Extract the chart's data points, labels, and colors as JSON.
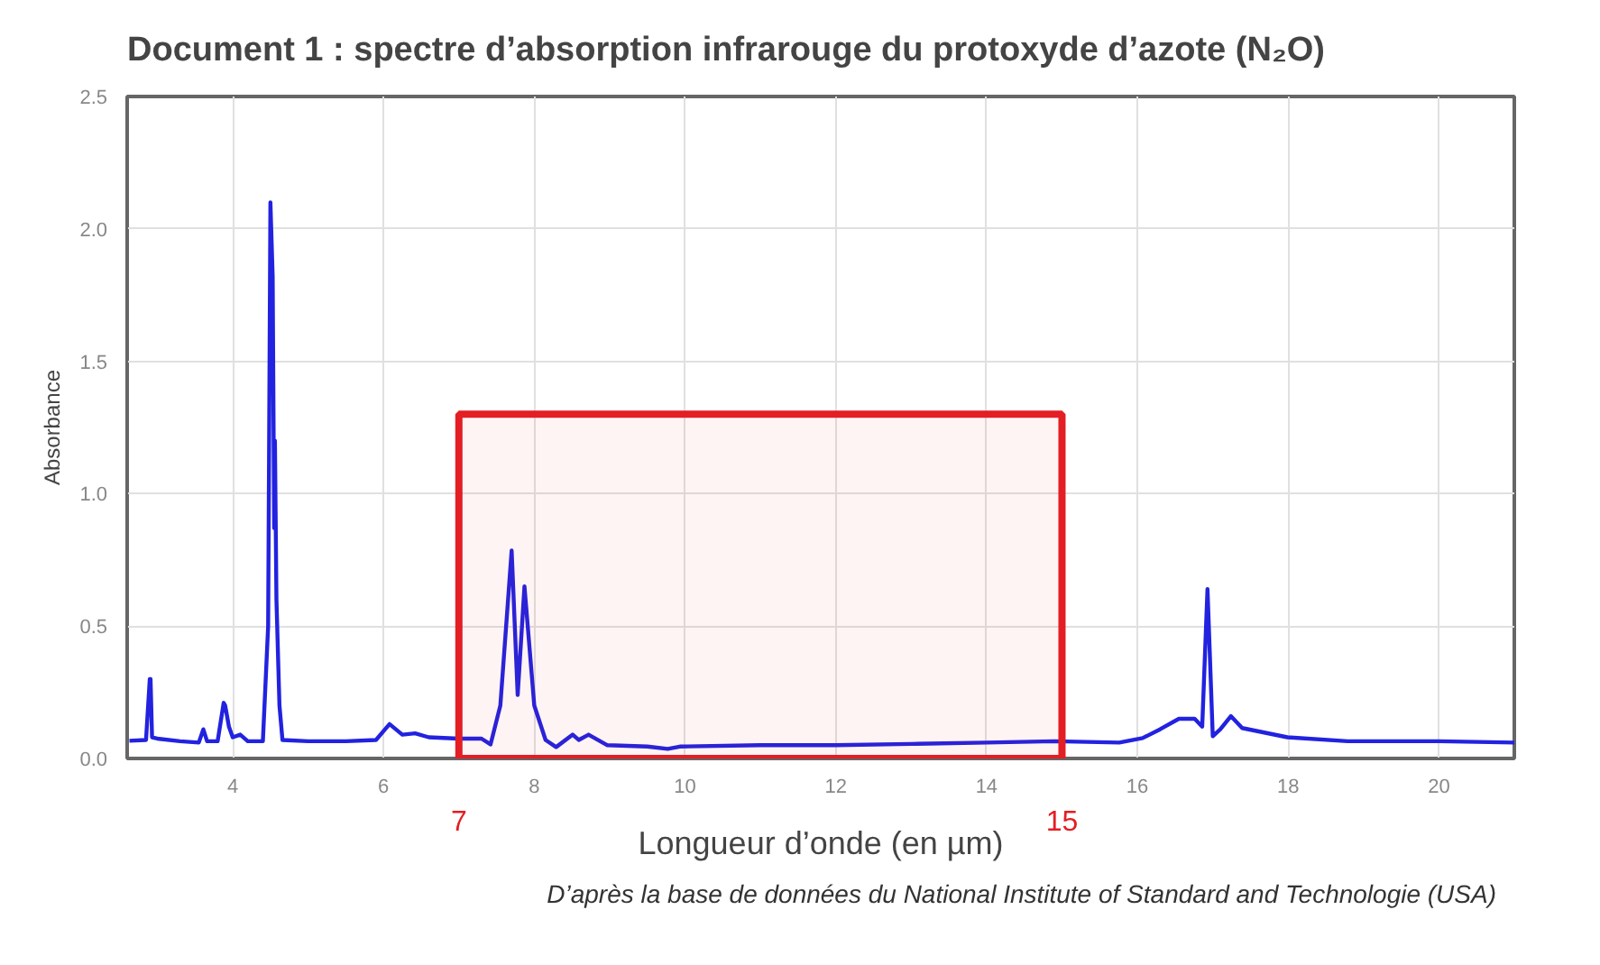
{
  "chart_data": {
    "type": "line",
    "title": "Document 1 : spectre d’absorption infrarouge du protoxyde d’azote (N₂O)",
    "xlabel": "Longueur d’onde (en µm)",
    "ylabel": "Absorbance",
    "xlim": [
      2.6,
      21
    ],
    "ylim": [
      0,
      2.5
    ],
    "xticks": [
      4,
      6,
      8,
      10,
      12,
      14,
      16,
      18,
      20
    ],
    "yticks": [
      {
        "value": 0,
        "label": "0.0"
      },
      {
        "value": 0.5,
        "label": "0.5"
      },
      {
        "value": 1,
        "label": "1.0"
      },
      {
        "value": 1.5,
        "label": "1.5"
      },
      {
        "value": 2,
        "label": "2.0"
      },
      {
        "value": 2.5,
        "label": "2.5"
      }
    ],
    "grid": true,
    "line_style": "solid",
    "series": [
      {
        "color": "#2222e0",
        "x": [
          2.63,
          2.85,
          2.9,
          2.91,
          2.93,
          3.0,
          3.3,
          3.55,
          3.61,
          3.66,
          3.8,
          3.88,
          3.9,
          3.95,
          4.0,
          4.1,
          4.2,
          4.4,
          4.47,
          4.5,
          4.53,
          4.55,
          4.56,
          4.58,
          4.62,
          4.66,
          5.0,
          5.5,
          5.9,
          6.08,
          6.25,
          6.42,
          6.6,
          7.0,
          7.3,
          7.42,
          7.55,
          7.7,
          7.78,
          7.87,
          8.0,
          8.15,
          8.29,
          8.51,
          8.59,
          8.72,
          8.97,
          9.5,
          9.77,
          9.93,
          11,
          12,
          13,
          14,
          14.9,
          15.76,
          16.07,
          16.3,
          16.55,
          16.76,
          16.86,
          16.93,
          17.0,
          17.1,
          17.24,
          17.39,
          17.99,
          18.79,
          20,
          21
        ],
        "values": [
          0.067,
          0.07,
          0.3,
          0.3,
          0.08,
          0.075,
          0.065,
          0.06,
          0.11,
          0.065,
          0.065,
          0.21,
          0.2,
          0.12,
          0.08,
          0.09,
          0.065,
          0.065,
          0.5,
          2.1,
          1.82,
          0.87,
          1.2,
          0.6,
          0.2,
          0.07,
          0.065,
          0.065,
          0.07,
          0.13,
          0.09,
          0.095,
          0.08,
          0.075,
          0.075,
          0.053,
          0.2,
          0.785,
          0.24,
          0.65,
          0.2,
          0.07,
          0.043,
          0.09,
          0.07,
          0.09,
          0.05,
          0.045,
          0.036,
          0.045,
          0.05,
          0.05,
          0.055,
          0.06,
          0.065,
          0.06,
          0.077,
          0.11,
          0.15,
          0.15,
          0.12,
          0.64,
          0.084,
          0.11,
          0.16,
          0.115,
          0.08,
          0.065,
          0.065,
          0.06
        ]
      }
    ],
    "bands": [
      {
        "axis": "x",
        "from": 7,
        "to": 15,
        "color": "#e31e24"
      }
    ],
    "annotations": [
      "7",
      "15",
      "D’après la base de données du National Institute of Standard and Technologie (USA)"
    ]
  }
}
